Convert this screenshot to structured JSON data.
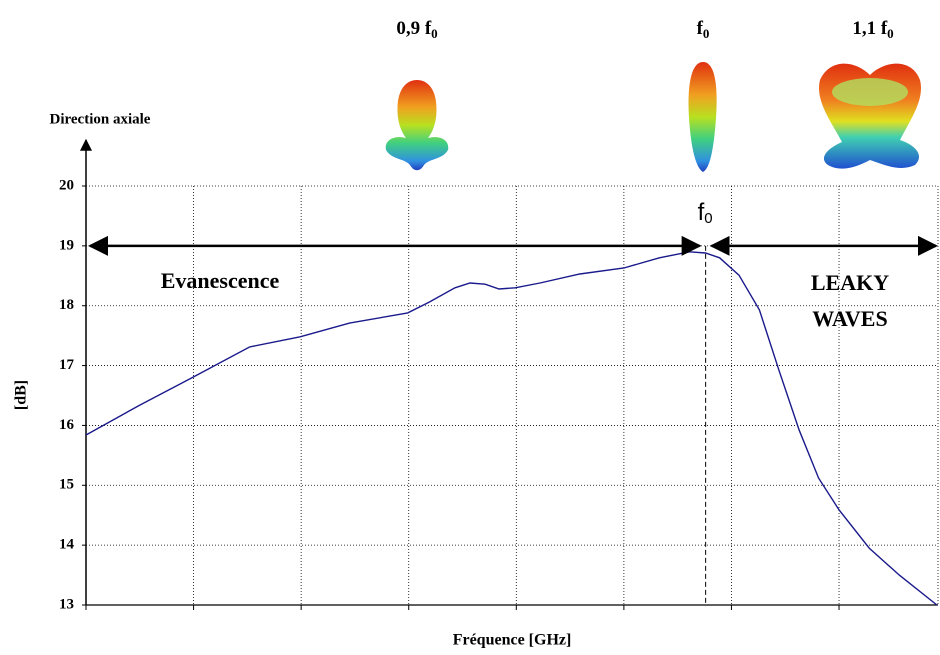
{
  "chart_data": {
    "type": "line",
    "y_axis_title": "Direction axiale",
    "y_label": "[dB]",
    "x_label": "Fréquence  [GHz]",
    "xlim": [
      0,
      7.92
    ],
    "xticks": [
      0,
      1,
      2,
      3,
      4,
      5,
      6,
      7
    ],
    "ylim": [
      13,
      20
    ],
    "yticks": [
      13,
      14,
      15,
      16,
      17,
      18,
      19,
      20
    ],
    "grid": true,
    "series": [
      {
        "color": "#1a1a8c",
        "x": [
          0,
          0.5,
          1.0,
          1.52,
          1.99,
          2.45,
          2.99,
          3.19,
          3.43,
          3.57,
          3.71,
          3.84,
          3.99,
          4.22,
          4.59,
          5.0,
          5.33,
          5.61,
          5.76,
          5.89,
          6.07,
          6.26,
          6.44,
          6.63,
          6.81,
          7.0,
          7.28,
          7.56,
          7.91
        ],
        "values": [
          15.84,
          16.34,
          16.81,
          17.31,
          17.48,
          17.71,
          17.88,
          18.06,
          18.3,
          18.38,
          18.36,
          18.28,
          18.3,
          18.38,
          18.53,
          18.63,
          18.8,
          18.9,
          18.88,
          18.8,
          18.51,
          17.93,
          16.93,
          15.92,
          15.12,
          14.59,
          13.95,
          13.5,
          13.0
        ]
      }
    ],
    "marker": {
      "x": 5.76,
      "label": "f",
      "sub": "0"
    },
    "regions": [
      {
        "label": "Evanescence"
      },
      {
        "label": "LEAKY WAVES"
      }
    ],
    "patterns": [
      {
        "label": "0,9 f",
        "sub": "0"
      },
      {
        "label": "f",
        "sub": "0"
      },
      {
        "label": "1,1 f",
        "sub": "0"
      }
    ]
  }
}
